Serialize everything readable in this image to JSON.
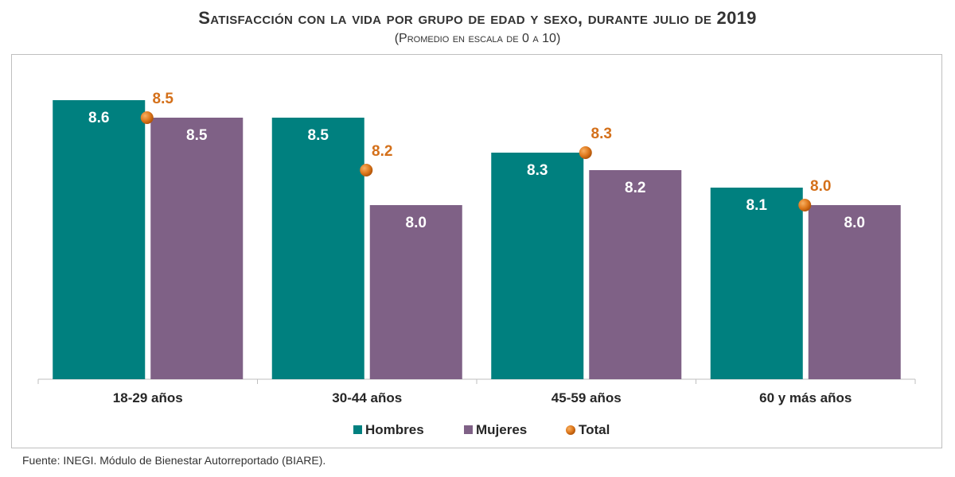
{
  "chart_data": {
    "type": "bar",
    "title": "Satisfacción con la vida por grupo de edad y sexo, durante julio de 2019",
    "subtitle": "(Promedio en escala de 0 a 10)",
    "categories": [
      "18-29 años",
      "30-44 años",
      "45-59 años",
      "60 y más años"
    ],
    "series": [
      {
        "name": "Hombres",
        "type": "bar",
        "color": "#00807f",
        "values": [
          8.6,
          8.5,
          8.3,
          8.1
        ]
      },
      {
        "name": "Mujeres",
        "type": "bar",
        "color": "#7f6186",
        "values": [
          8.5,
          8.0,
          8.2,
          8.0
        ]
      },
      {
        "name": "Total",
        "type": "point",
        "color": "#e07b1f",
        "values": [
          8.5,
          8.2,
          8.3,
          8.0
        ]
      }
    ],
    "ylim": [
      0,
      10
    ],
    "legend_position": "bottom",
    "grid": false
  },
  "source": "Fuente: INEGI. Módulo de Bienestar Autorreportado (BIARE)."
}
